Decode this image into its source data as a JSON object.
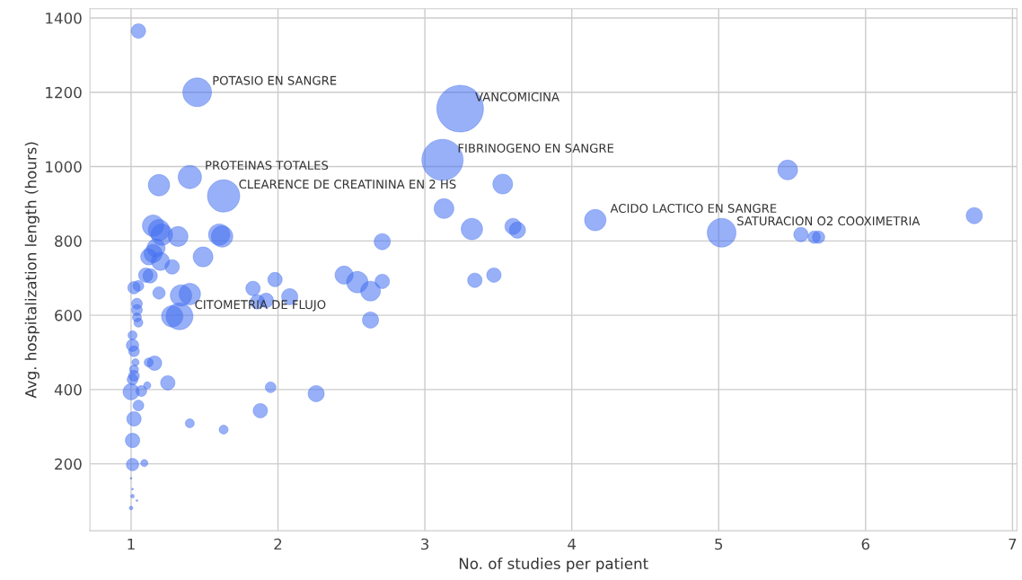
{
  "chart_data": {
    "type": "bubble",
    "xlabel": "No. of studies per patient",
    "ylabel": "Avg. hospitalization length (hours)",
    "xlim": [
      0.72,
      7.03
    ],
    "ylim": [
      20,
      1425
    ],
    "xticks": [
      1,
      2,
      3,
      4,
      5,
      6,
      7
    ],
    "yticks": [
      200,
      400,
      600,
      800,
      1000,
      1200,
      1400
    ],
    "grid": true,
    "series": [
      {
        "color": "#4470f0",
        "x": [
          1.05,
          1.45,
          3.24,
          3.12,
          1.4,
          1.63,
          1.19,
          5.47,
          3.53,
          3.13,
          3.32,
          3.6,
          3.63,
          4.16,
          5.02,
          5.56,
          5.65,
          5.68,
          6.74,
          1.15,
          1.19,
          1.21,
          1.32,
          1.6,
          1.62,
          1.17,
          1.12,
          1.15,
          1.2,
          1.28,
          1.1,
          1.13,
          1.49,
          1.02,
          1.05,
          1.19,
          1.34,
          1.4,
          1.28,
          1.33,
          1.04,
          1.04,
          1.04,
          1.05,
          1.01,
          1.01,
          1.02,
          1.03,
          1.02,
          1.02,
          1.01,
          1.12,
          1.16,
          1.0,
          1.07,
          1.05,
          1.11,
          1.25,
          1.02,
          1.01,
          1.01,
          1.09,
          1.0,
          1.01,
          1.01,
          1.04,
          1.0,
          1.4,
          1.63,
          1.88,
          1.95,
          2.71,
          1.83,
          1.98,
          1.92,
          1.86,
          2.08,
          2.45,
          2.54,
          2.63,
          2.71,
          2.63,
          3.34,
          3.47,
          2.26
        ],
        "values": [
          1365,
          1200,
          1156,
          1018,
          972,
          921,
          950,
          991,
          953,
          887,
          832,
          839,
          829,
          856,
          822,
          817,
          810,
          810,
          868,
          841,
          829,
          817,
          812,
          817,
          812,
          781,
          757,
          766,
          745,
          730,
          708,
          706,
          757,
          674,
          679,
          660,
          653,
          657,
          597,
          597,
          631,
          614,
          594,
          580,
          546,
          519,
          503,
          473,
          454,
          437,
          427,
          473,
          471,
          394,
          396,
          357,
          411,
          418,
          321,
          263,
          198,
          202,
          161,
          132,
          113,
          101,
          81,
          309,
          292,
          343,
          406,
          798,
          672,
          696,
          640,
          636,
          650,
          708,
          689,
          665,
          691,
          587,
          694,
          708,
          389
        ],
        "sizes": [
          0.095,
          0.38,
          1,
          0.78,
          0.25,
          0.48,
          0.21,
          0.18,
          0.18,
          0.18,
          0.21,
          0.12,
          0.12,
          0.21,
          0.38,
          0.095,
          0.07,
          0.07,
          0.12,
          0.21,
          0.21,
          0.21,
          0.18,
          0.21,
          0.21,
          0.15,
          0.12,
          0.15,
          0.15,
          0.095,
          0.095,
          0.095,
          0.18,
          0.07,
          0.053,
          0.07,
          0.21,
          0.21,
          0.21,
          0.33,
          0.053,
          0.053,
          0.037,
          0.037,
          0.037,
          0.07,
          0.053,
          0.024,
          0.037,
          0.053,
          0.053,
          0.037,
          0.095,
          0.12,
          0.053,
          0.053,
          0.024,
          0.095,
          0.095,
          0.095,
          0.07,
          0.024,
          0.0015,
          0.0015,
          0.006,
          0.0015,
          0.006,
          0.037,
          0.037,
          0.095,
          0.053,
          0.12,
          0.095,
          0.095,
          0.095,
          0.095,
          0.12,
          0.15,
          0.21,
          0.18,
          0.095,
          0.12,
          0.095,
          0.095,
          0.12
        ]
      }
    ],
    "annotations": [
      {
        "text": "POTASIO EN SANGRE",
        "x": 1.45,
        "y": 1200
      },
      {
        "text": "VANCOMICINA",
        "x": 3.24,
        "y": 1156
      },
      {
        "text": "FIBRINOGENO EN SANGRE",
        "x": 3.12,
        "y": 1018
      },
      {
        "text": "PROTEINAS TOTALES",
        "x": 1.4,
        "y": 972
      },
      {
        "text": "CLEARENCE DE CREATININA EN 2 HS",
        "x": 1.63,
        "y": 921
      },
      {
        "text": "ACIDO LACTICO EN SANGRE",
        "x": 4.16,
        "y": 856
      },
      {
        "text": "SATURACION O2 COOXIMETRIA",
        "x": 5.02,
        "y": 822
      },
      {
        "text": "CITOMETRIA DE FLUJO",
        "x": 1.33,
        "y": 597
      }
    ]
  }
}
